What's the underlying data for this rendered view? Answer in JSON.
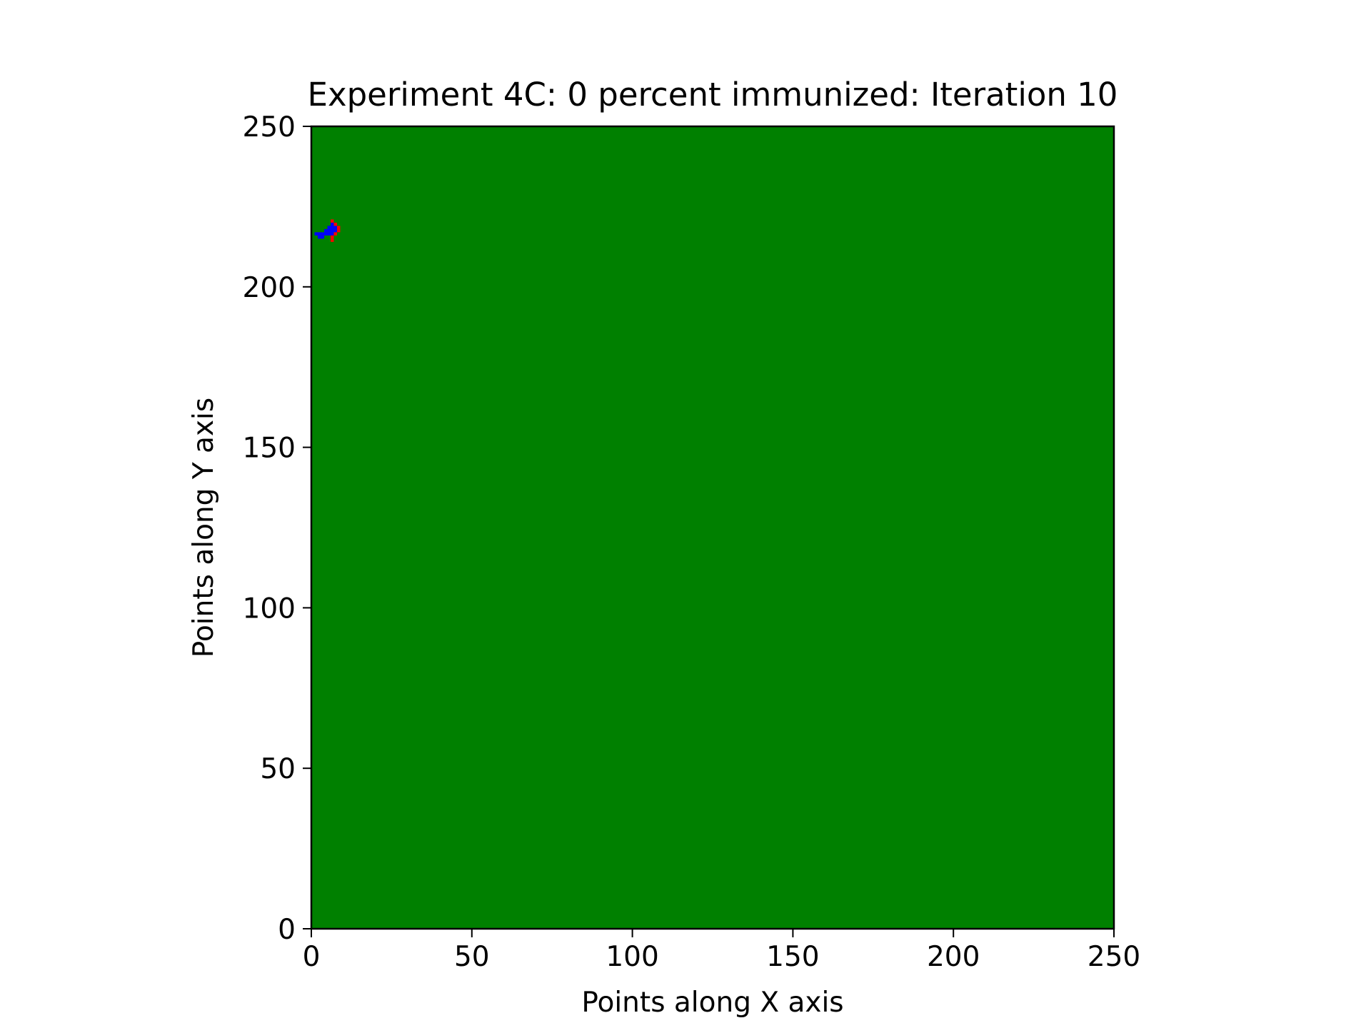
{
  "chart_data": {
    "type": "heatmap",
    "title": "Experiment 4C: 0 percent immunized: Iteration 10",
    "xlabel": "Points along X axis",
    "ylabel": "Points along Y axis",
    "xlim": [
      0,
      250
    ],
    "ylim": [
      0,
      250
    ],
    "x_ticks": [
      "0",
      "50",
      "100",
      "150",
      "200",
      "250"
    ],
    "y_ticks": [
      "0",
      "50",
      "100",
      "150",
      "200",
      "250"
    ],
    "grid": false,
    "background_state": "healthy",
    "colors": {
      "healthy": "#008000",
      "recovered": "#0000ff",
      "infected": "#ff0000"
    },
    "cells": [
      {
        "x": 1,
        "y": 216,
        "state": "recovered"
      },
      {
        "x": 2,
        "y": 216,
        "state": "recovered"
      },
      {
        "x": 2,
        "y": 215,
        "state": "recovered"
      },
      {
        "x": 3,
        "y": 216,
        "state": "recovered"
      },
      {
        "x": 3,
        "y": 215,
        "state": "recovered"
      },
      {
        "x": 4,
        "y": 216,
        "state": "recovered"
      },
      {
        "x": 4,
        "y": 217,
        "state": "recovered"
      },
      {
        "x": 5,
        "y": 216,
        "state": "recovered"
      },
      {
        "x": 5,
        "y": 217,
        "state": "recovered"
      },
      {
        "x": 5,
        "y": 218,
        "state": "recovered"
      },
      {
        "x": 6,
        "y": 217,
        "state": "recovered"
      },
      {
        "x": 6,
        "y": 218,
        "state": "recovered"
      },
      {
        "x": 6,
        "y": 219,
        "state": "recovered"
      },
      {
        "x": 6,
        "y": 216,
        "state": "recovered"
      },
      {
        "x": 7,
        "y": 218,
        "state": "recovered"
      },
      {
        "x": 7,
        "y": 217,
        "state": "recovered"
      },
      {
        "x": 6,
        "y": 220,
        "state": "infected"
      },
      {
        "x": 7,
        "y": 219,
        "state": "infected"
      },
      {
        "x": 8,
        "y": 218,
        "state": "infected"
      },
      {
        "x": 8,
        "y": 217,
        "state": "infected"
      },
      {
        "x": 6,
        "y": 215,
        "state": "infected"
      },
      {
        "x": 6,
        "y": 214,
        "state": "infected"
      },
      {
        "x": 7,
        "y": 216,
        "state": "infected"
      }
    ]
  }
}
